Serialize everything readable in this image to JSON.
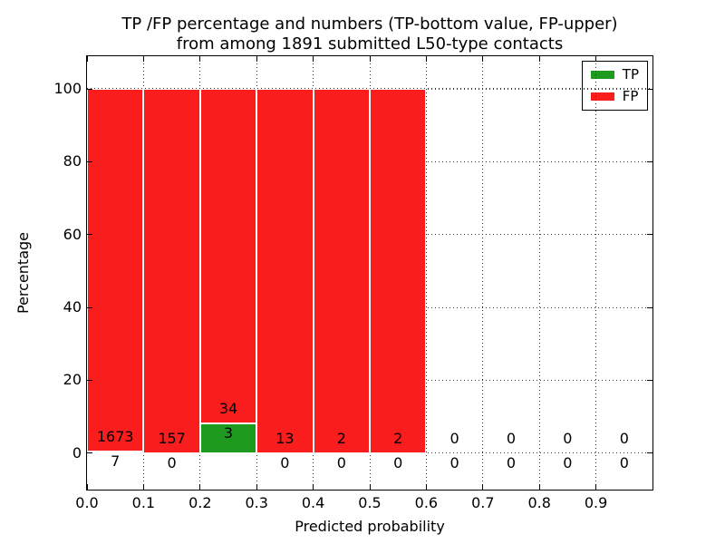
{
  "figure": {
    "title_line1": "TP /FP percentage and numbers (TP-bottom value, FP-upper)",
    "title_line2": "from among 1891 submitted L50-type contacts"
  },
  "chart_data": {
    "type": "bar",
    "stacked": true,
    "title": "TP /FP percentage and numbers (TP-bottom value, FP-upper) from among 1891 submitted L50-type contacts",
    "xlabel": "Predicted probability",
    "ylabel": "Percentage",
    "xlim": [
      0.0,
      1.0
    ],
    "ylim": [
      -10,
      109
    ],
    "xticks": [
      0.0,
      0.1,
      0.2,
      0.3,
      0.4,
      0.5,
      0.6,
      0.7,
      0.8,
      0.9
    ],
    "xtick_labels": [
      "0.0",
      "0.1",
      "0.2",
      "0.3",
      "0.4",
      "0.5",
      "0.6",
      "0.7",
      "0.8",
      "0.9"
    ],
    "yticks": [
      0,
      20,
      40,
      60,
      80,
      100
    ],
    "grid": true,
    "grid_style": "dotted",
    "legend": {
      "position": "upper right",
      "entries": [
        {
          "label": "TP",
          "color": "#1e9b1e"
        },
        {
          "label": "FP",
          "color": "#fa1d1d"
        }
      ]
    },
    "series": [
      {
        "name": "TP",
        "counts": [
          7,
          0,
          3,
          0,
          0,
          0,
          0,
          0,
          0,
          0
        ]
      },
      {
        "name": "FP",
        "counts": [
          1673,
          157,
          34,
          13,
          2,
          2,
          0,
          0,
          0,
          0
        ]
      }
    ],
    "bins": [
      {
        "range": [
          0.0,
          0.1
        ],
        "tp_count": 7,
        "fp_count": 1673,
        "tp_pct": 0.42,
        "fp_pct": 99.58
      },
      {
        "range": [
          0.1,
          0.2
        ],
        "tp_count": 0,
        "fp_count": 157,
        "tp_pct": 0,
        "fp_pct": 100
      },
      {
        "range": [
          0.2,
          0.3
        ],
        "tp_count": 3,
        "fp_count": 34,
        "tp_pct": 8.11,
        "fp_pct": 91.89
      },
      {
        "range": [
          0.3,
          0.4
        ],
        "tp_count": 0,
        "fp_count": 13,
        "tp_pct": 0,
        "fp_pct": 100
      },
      {
        "range": [
          0.4,
          0.5
        ],
        "tp_count": 0,
        "fp_count": 2,
        "tp_pct": 0,
        "fp_pct": 100
      },
      {
        "range": [
          0.5,
          0.6
        ],
        "tp_count": 0,
        "fp_count": 2,
        "tp_pct": 0,
        "fp_pct": 100
      },
      {
        "range": [
          0.6,
          0.7
        ],
        "tp_count": 0,
        "fp_count": 0,
        "tp_pct": 0,
        "fp_pct": 0
      },
      {
        "range": [
          0.7,
          0.8
        ],
        "tp_count": 0,
        "fp_count": 0,
        "tp_pct": 0,
        "fp_pct": 0
      },
      {
        "range": [
          0.8,
          0.9
        ],
        "tp_count": 0,
        "fp_count": 0,
        "tp_pct": 0,
        "fp_pct": 0
      },
      {
        "range": [
          0.9,
          1.0
        ],
        "tp_count": 0,
        "fp_count": 0,
        "tp_pct": 0,
        "fp_pct": 0
      }
    ]
  }
}
